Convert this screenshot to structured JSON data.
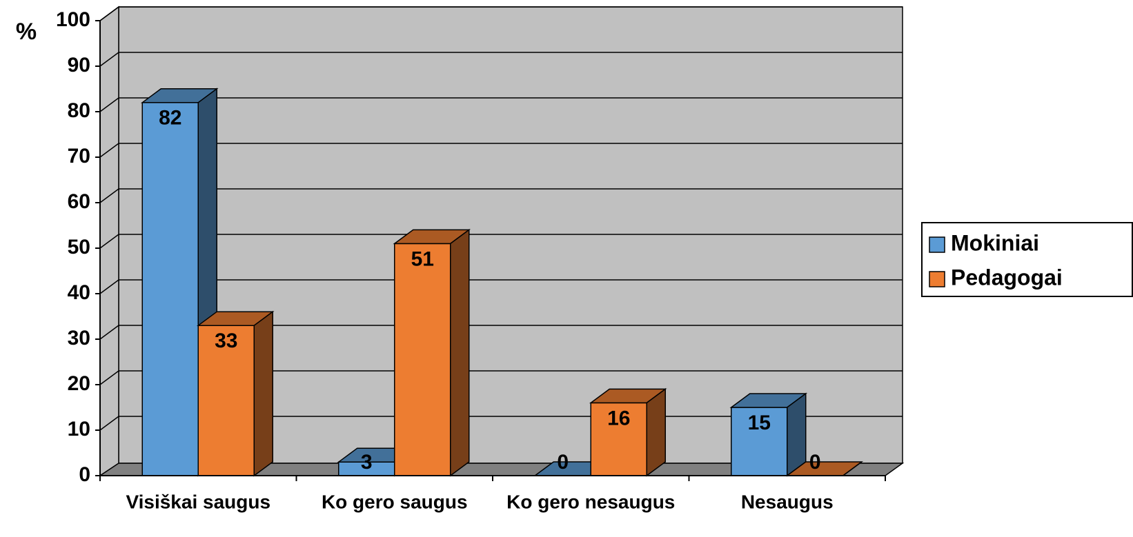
{
  "chart_data": {
    "type": "bar3d",
    "y_label": "%",
    "categories": [
      "Visiškai saugus",
      "Ko gero saugus",
      "Ko gero nesaugus",
      "Nesaugus"
    ],
    "series": [
      {
        "name": "Mokiniai",
        "color": "#5b9bd5",
        "values": [
          82,
          3,
          0,
          15
        ]
      },
      {
        "name": "Pedagogai",
        "color": "#ed7d31",
        "values": [
          33,
          51,
          16,
          0
        ]
      }
    ],
    "ylim": [
      0,
      100
    ],
    "yticks": [
      0,
      10,
      20,
      30,
      40,
      50,
      60,
      70,
      80,
      90,
      100
    ],
    "grid": true
  }
}
